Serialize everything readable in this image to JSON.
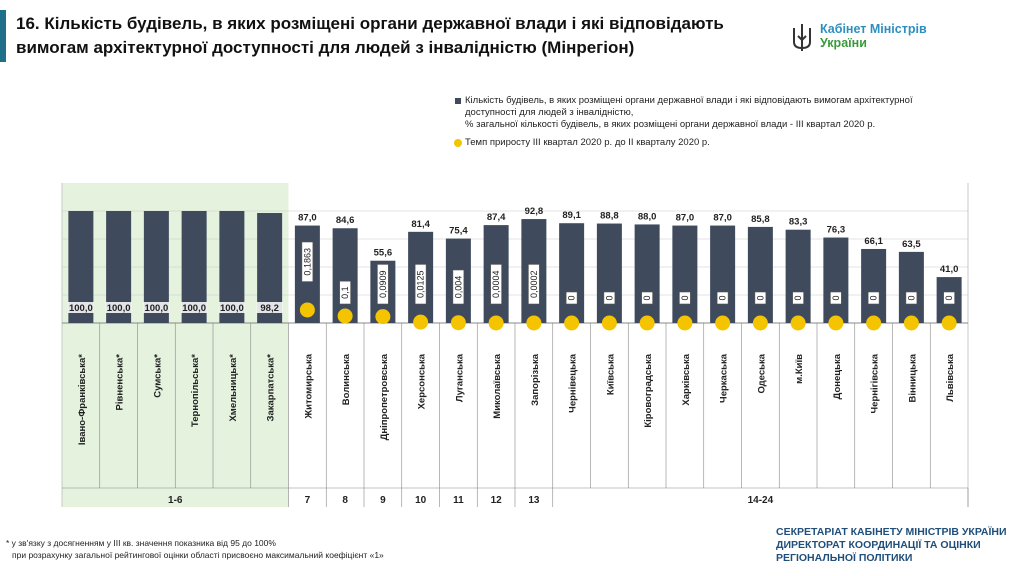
{
  "title_line1": "16. Кількість будівель, в яких розміщені органи державної влади і які відповідають",
  "title_line2": "вимогам архітектурної доступності для людей з інвалідністю (Мінрегіон)",
  "logo": {
    "line1": "Кабінет Міністрів",
    "line2": "України",
    "icon": "trident-icon"
  },
  "colors": {
    "bar": "#3f4a5c",
    "dot": "#f5c400",
    "highlight": "#e4f2de",
    "accent": "#1f6f8b",
    "grid": "#c8c8c8",
    "footer": "#1f4f7a",
    "logo_text": "#2d8fbf",
    "logo_green": "#3a9a3a"
  },
  "legend": {
    "bar_line1": "Кількість будівель, в яких розміщені органи державної влади і які відповідають вимогам архітектурної",
    "bar_line2": "доступності для людей з інвалідністю,",
    "bar_line3": "% загальної кількості будівель, в яких розміщені органи державної влади - ІІІ квартал 2020 р.",
    "dot_label": "Темп приросту ІІІ квартал 2020 р. до ІІ кварталу 2020 р."
  },
  "chart_data": {
    "type": "bar",
    "categories": [
      "Івано-Франківська*",
      "Рівненська*",
      "Сумська*",
      "Тернопільська*",
      "Хмельницька*",
      "Закарпатська*",
      "Житомирська",
      "Волинська",
      "Дніпропетровська",
      "Херсонська",
      "Луганська",
      "Миколаївська",
      "Запорізька",
      "Чернівецька",
      "Київська",
      "Кіровоградська",
      "Харківська",
      "Черкаська",
      "Одеська",
      "м.Київ",
      "Донецька",
      "Чернігівська",
      "Вінницька",
      "Львівська"
    ],
    "series": [
      {
        "values": [
          100.0,
          100.0,
          100.0,
          100.0,
          100.0,
          98.2,
          87.0,
          84.6,
          55.6,
          81.4,
          75.4,
          87.4,
          92.8,
          89.1,
          88.8,
          88.0,
          87.0,
          87.0,
          85.8,
          83.3,
          76.3,
          66.1,
          63.5,
          41.0
        ],
        "labels": [
          "100,0",
          "100,0",
          "100,0",
          "100,0",
          "100,0",
          "98,2",
          "87,0",
          "84,6",
          "55,6",
          "81,4",
          "75,4",
          "87,4",
          "92,8",
          "89,1",
          "88,8",
          "88,0",
          "87,0",
          "87,0",
          "85,8",
          "83,3",
          "76,3",
          "66,1",
          "63,5",
          "41,0"
        ]
      },
      {
        "values": [
          null,
          null,
          null,
          null,
          null,
          null,
          0.1863,
          0.1,
          0.0909,
          0.0125,
          0.004,
          0.0004,
          0.0002,
          0,
          0,
          0,
          0,
          0,
          0,
          0,
          0,
          0,
          0,
          0
        ],
        "labels": [
          "",
          "",
          "",
          "",
          "",
          "",
          "0,1863",
          "0,1",
          "0,0909",
          "0,0125",
          "0,004",
          "0,0004",
          "0,0002",
          "0",
          "0",
          "0",
          "0",
          "0",
          "0",
          "0",
          "0",
          "0",
          "0",
          "0"
        ]
      }
    ],
    "ranks": [
      {
        "label": "1-6",
        "from": 0,
        "to": 5
      },
      {
        "label": "7",
        "from": 6,
        "to": 6
      },
      {
        "label": "8",
        "from": 7,
        "to": 7
      },
      {
        "label": "9",
        "from": 8,
        "to": 8
      },
      {
        "label": "10",
        "from": 9,
        "to": 9
      },
      {
        "label": "11",
        "from": 10,
        "to": 10
      },
      {
        "label": "12",
        "from": 11,
        "to": 11
      },
      {
        "label": "13",
        "from": 12,
        "to": 12
      },
      {
        "label": "14-24",
        "from": 13,
        "to": 23
      }
    ],
    "highlight_range": [
      0,
      5
    ],
    "ylim": [
      0,
      125
    ],
    "grid": true
  },
  "footnote": {
    "line1": "* у зв'язку з досягненням у ІІІ кв. значення показника від 95 до 100%",
    "line2": "при розрахунку загальної рейтингової оцінки області присвоєно максимальний коефіцієнт «1»"
  },
  "footer": {
    "line1": "СЕКРЕТАРІАТ КАБІНЕТУ МІНІСТРІВ УКРАЇНИ",
    "line2": "ДИРЕКТОРАТ КООРДИНАЦІЇ ТА ОЦІНКИ",
    "line3": "РЕГІОНАЛЬНОЇ ПОЛІТИКИ"
  }
}
